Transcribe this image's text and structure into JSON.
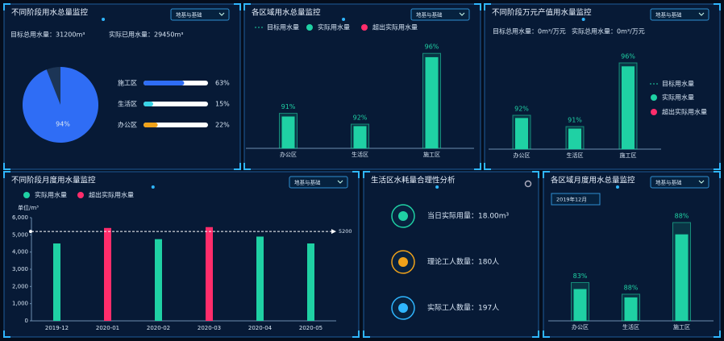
{
  "chart_data": [
    {
      "type": "pie",
      "title": "不同阶段用水总量监控",
      "dropdown": "地基与基础",
      "summary": [
        "目标总用水量：31200m³",
        "实际已用水量：29450m³"
      ],
      "values": [
        94
      ],
      "value_labels": [
        "94%"
      ],
      "color": "#2f6df5",
      "progress": {
        "categories": [
          "施工区",
          "生活区",
          "办公区"
        ],
        "values": [
          63,
          15,
          22
        ],
        "value_labels": [
          "63%",
          "15%",
          "22%"
        ],
        "colors": [
          "#2f6df5",
          "#39d3e6",
          "#f0a21a"
        ]
      }
    },
    {
      "type": "target-bar",
      "title": "各区域用水总量监控",
      "dropdown": "地基与基础",
      "legend": [
        {
          "name": "目标用水量",
          "color": "#1fd1a4"
        },
        {
          "name": "实际用水量",
          "color": "#1fd1a4"
        },
        {
          "name": "超出实际用水量",
          "color": "#ff2d6b"
        }
      ],
      "categories": [
        "办公区",
        "生活区",
        "施工区"
      ],
      "targets": [
        42,
        29,
        114
      ],
      "values": [
        91,
        92,
        96
      ],
      "value_labels": [
        "91%",
        "92%",
        "96%"
      ],
      "ylim": [
        0,
        120
      ]
    },
    {
      "type": "target-bar",
      "title": "不同阶段万元产值用水量监控",
      "dropdown": "地基与基础",
      "summary": [
        "目标总用水量：0m³/万元",
        "实际总用水量：0m³/万元"
      ],
      "legend": [
        {
          "name": "目标用水量",
          "color": "#1fd1a4"
        },
        {
          "name": "实际用水量",
          "color": "#1fd1a4"
        },
        {
          "name": "超出实际用水量",
          "color": "#ff2d6b"
        }
      ],
      "categories": [
        "办公区",
        "生活区",
        "施工区"
      ],
      "targets": [
        42,
        28,
        107
      ],
      "values": [
        92,
        91,
        96
      ],
      "value_labels": [
        "92%",
        "91%",
        "96%"
      ],
      "ylim": [
        0,
        120
      ]
    },
    {
      "type": "bar",
      "title": "不同阶段月度用水量监控",
      "dropdown": "地基与基础",
      "series": [
        {
          "name": "实际用水量",
          "color": "#1fd1a4"
        },
        {
          "name": "超出实际用水量",
          "color": "#ff2d6b"
        }
      ],
      "y_label": "单位/m³",
      "categories": [
        "2019-12",
        "2020-01",
        "2020-02",
        "2020-03",
        "2020-04",
        "2020-05"
      ],
      "values": [
        4500,
        5400,
        4750,
        5450,
        4900,
        4500
      ],
      "target_line": 5200,
      "ylim": [
        0,
        6000
      ],
      "yticks": [
        0,
        {
          "value": 1000,
          "label": "1,000"
        },
        {
          "value": 2000,
          "label": "2,000"
        },
        {
          "value": 3000,
          "label": "3,000"
        },
        {
          "value": 4000,
          "label": "4,000"
        },
        {
          "value": 5000,
          "label": "5,000"
        },
        {
          "value": 6000,
          "label": "6,000"
        }
      ]
    },
    {
      "type": "target-bar",
      "title": "各区域月度用水总量监控",
      "dropdown": "地基与基础",
      "date": "2019年12月",
      "categories": [
        "办公区",
        "生活区",
        "施工区"
      ],
      "targets": [
        46,
        32,
        118
      ],
      "values": [
        83,
        88,
        88
      ],
      "value_labels": [
        "83%",
        "88%",
        "88%"
      ],
      "ylim": [
        0,
        120
      ]
    }
  ],
  "analysis": {
    "title": "生活区水耗量合理性分析",
    "items": [
      "当日实际用量：18.00m³",
      "理论工人数量：180人",
      "实际工人数量：197人"
    ]
  }
}
